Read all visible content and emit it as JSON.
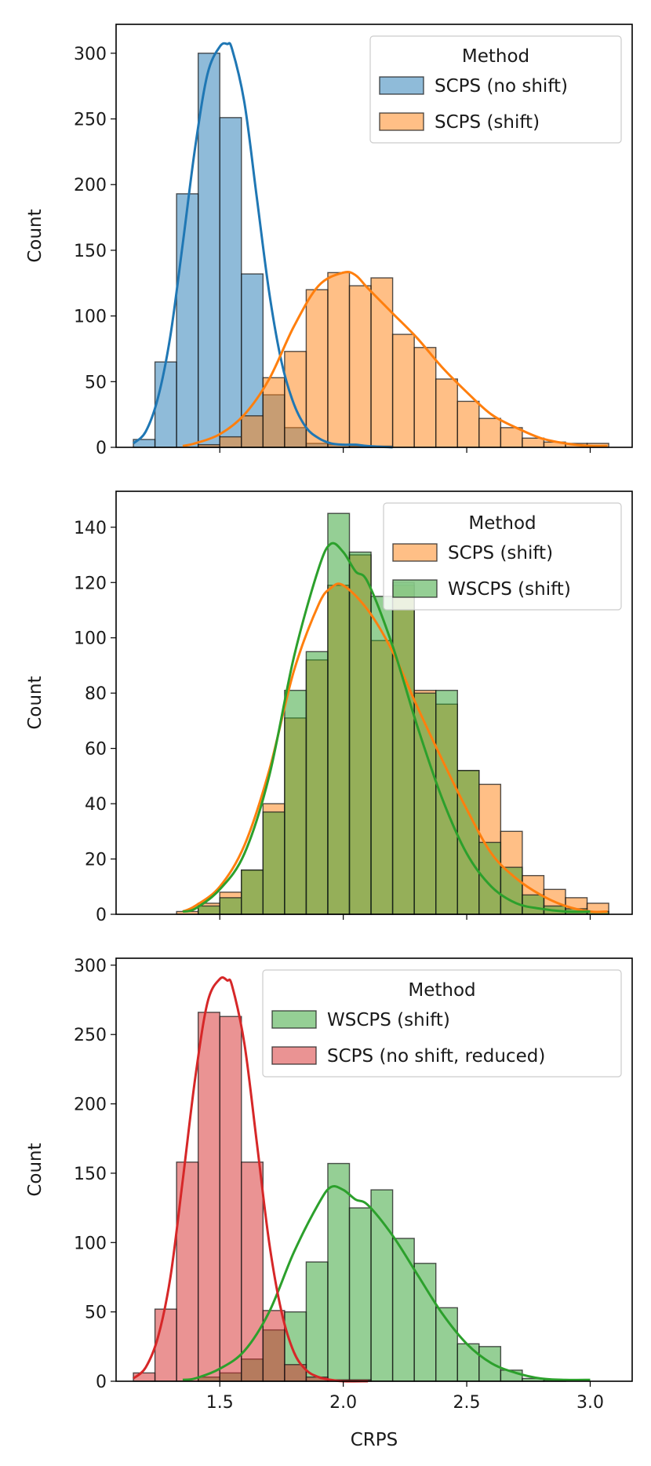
{
  "chart_data": [
    {
      "type": "histogram",
      "xlabel": "",
      "ylabel": "Count",
      "xlim": [
        1.08,
        3.17
      ],
      "ylim": [
        0,
        322
      ],
      "yticks": [
        0,
        50,
        100,
        150,
        200,
        250,
        300
      ],
      "xticks": [
        1.5,
        2.0,
        2.5,
        3.0
      ],
      "show_xtick_labels": false,
      "bin_width": 0.0875,
      "legend": {
        "title": "Method",
        "position": "upper right"
      },
      "series": [
        {
          "name": "SCPS (no shift)",
          "color": "#1f77b4",
          "bin_start": 1.15,
          "counts": [
            6,
            65,
            193,
            300,
            251,
            132,
            40,
            15,
            3,
            2,
            1,
            1,
            0,
            0,
            0,
            0,
            0,
            0,
            0,
            0,
            0,
            0
          ],
          "kde_x": [
            1.15,
            1.2,
            1.25,
            1.3,
            1.35,
            1.4,
            1.45,
            1.5,
            1.53,
            1.55,
            1.6,
            1.65,
            1.7,
            1.75,
            1.8,
            1.85,
            1.9,
            1.95,
            2.0,
            2.05,
            2.1,
            2.2
          ],
          "kde_y": [
            3,
            12,
            38,
            85,
            155,
            228,
            284,
            305,
            307,
            303,
            262,
            190,
            118,
            65,
            33,
            15,
            7,
            3,
            2,
            2,
            1,
            0
          ]
        },
        {
          "name": "SCPS (shift)",
          "color": "#ff7f0e",
          "bin_start": 1.15,
          "counts": [
            0,
            0,
            0,
            2,
            8,
            24,
            53,
            73,
            120,
            133,
            123,
            129,
            86,
            76,
            52,
            35,
            22,
            15,
            7,
            4,
            3,
            3
          ],
          "kde_x": [
            1.35,
            1.4,
            1.5,
            1.6,
            1.7,
            1.8,
            1.9,
            2.0,
            2.05,
            2.1,
            2.2,
            2.3,
            2.4,
            2.5,
            2.6,
            2.7,
            2.8,
            2.9,
            3.0,
            3.07
          ],
          "kde_y": [
            1,
            3,
            10,
            25,
            52,
            92,
            123,
            133,
            131,
            121,
            102,
            83,
            61,
            42,
            25,
            15,
            7,
            3,
            1,
            1
          ]
        }
      ]
    },
    {
      "type": "histogram",
      "xlabel": "",
      "ylabel": "Count",
      "xlim": [
        1.08,
        3.17
      ],
      "ylim": [
        0,
        153
      ],
      "yticks": [
        0,
        20,
        40,
        60,
        80,
        100,
        120,
        140
      ],
      "xticks": [
        1.5,
        2.0,
        2.5,
        3.0
      ],
      "show_xtick_labels": false,
      "bin_width": 0.0875,
      "legend": {
        "title": "Method",
        "position": "upper right"
      },
      "series": [
        {
          "name": "SCPS (shift)",
          "color": "#ff7f0e",
          "bin_start": 1.15,
          "counts": [
            0,
            0,
            1,
            4,
            8,
            16,
            40,
            71,
            92,
            119,
            130,
            99,
            119,
            81,
            76,
            52,
            47,
            30,
            14,
            9,
            6,
            4
          ],
          "kde_x": [
            1.35,
            1.4,
            1.5,
            1.6,
            1.7,
            1.8,
            1.9,
            1.95,
            2.0,
            2.1,
            2.2,
            2.3,
            2.4,
            2.5,
            2.6,
            2.7,
            2.8,
            2.9,
            3.0,
            3.07
          ],
          "kde_y": [
            1,
            3,
            10,
            25,
            52,
            88,
            112,
            118,
            119,
            110,
            95,
            75,
            56,
            38,
            22,
            13,
            7,
            3,
            1,
            1
          ]
        },
        {
          "name": "WSCPS (shift)",
          "color": "#2ca02c",
          "bin_start": 1.15,
          "counts": [
            0,
            0,
            0,
            3,
            6,
            16,
            37,
            81,
            95,
            145,
            131,
            115,
            120,
            80,
            81,
            52,
            26,
            17,
            7,
            3,
            2,
            1
          ],
          "kde_x": [
            1.35,
            1.4,
            1.5,
            1.6,
            1.7,
            1.8,
            1.9,
            1.95,
            2.0,
            2.05,
            2.1,
            2.2,
            2.3,
            2.4,
            2.5,
            2.6,
            2.7,
            2.8,
            2.9,
            3.0
          ],
          "kde_y": [
            1,
            2,
            9,
            22,
            50,
            93,
            125,
            134,
            131,
            124,
            120,
            97,
            68,
            42,
            22,
            10,
            4,
            2,
            1,
            1
          ]
        }
      ]
    },
    {
      "type": "histogram",
      "xlabel": "CRPS",
      "ylabel": "Count",
      "xlim": [
        1.08,
        3.17
      ],
      "ylim": [
        0,
        305
      ],
      "yticks": [
        0,
        50,
        100,
        150,
        200,
        250,
        300
      ],
      "xticks": [
        1.5,
        2.0,
        2.5,
        3.0
      ],
      "xtick_labels": [
        "1.5",
        "2.0",
        "2.5",
        "3.0"
      ],
      "show_xtick_labels": true,
      "bin_width": 0.0875,
      "legend": {
        "title": "Method",
        "position": "upper right"
      },
      "series": [
        {
          "name": "WSCPS (shift)",
          "color": "#2ca02c",
          "bin_start": 1.15,
          "counts": [
            0,
            0,
            0,
            3,
            6,
            16,
            37,
            50,
            86,
            157,
            125,
            138,
            103,
            85,
            53,
            27,
            25,
            8,
            2,
            1
          ],
          "kde_x": [
            1.35,
            1.4,
            1.5,
            1.6,
            1.7,
            1.8,
            1.9,
            1.95,
            2.0,
            2.05,
            2.1,
            2.2,
            2.3,
            2.4,
            2.5,
            2.6,
            2.7,
            2.8,
            2.9,
            3.0
          ],
          "kde_y": [
            1,
            2,
            9,
            22,
            50,
            93,
            128,
            140,
            138,
            131,
            127,
            105,
            77,
            49,
            27,
            13,
            6,
            2,
            1,
            1
          ]
        },
        {
          "name": "SCPS (no shift, reduced)",
          "color": "#d62728",
          "bin_start": 1.15,
          "counts": [
            6,
            52,
            158,
            266,
            263,
            158,
            51,
            12,
            3,
            1,
            1,
            0,
            0,
            0,
            0,
            0,
            0,
            0,
            0,
            0
          ],
          "kde_x": [
            1.15,
            1.2,
            1.25,
            1.3,
            1.35,
            1.4,
            1.45,
            1.5,
            1.53,
            1.55,
            1.6,
            1.65,
            1.7,
            1.75,
            1.8,
            1.85,
            1.9,
            1.95,
            2.0,
            2.1
          ],
          "kde_y": [
            2,
            10,
            32,
            75,
            145,
            218,
            273,
            290,
            289,
            285,
            243,
            172,
            100,
            50,
            21,
            8,
            3,
            1,
            0,
            0
          ]
        }
      ]
    }
  ]
}
